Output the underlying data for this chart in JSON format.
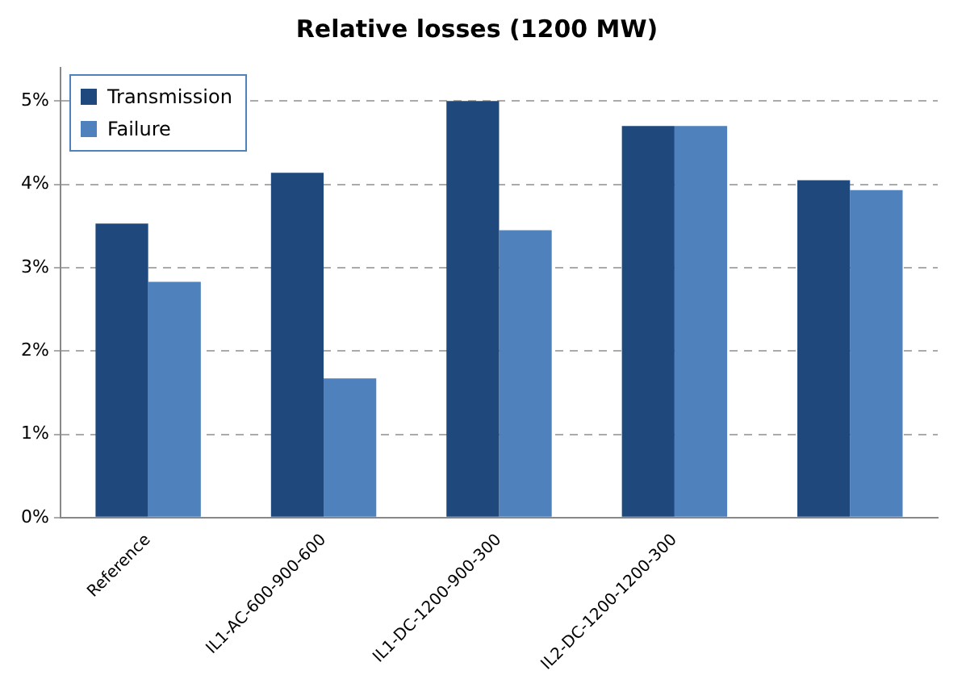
{
  "chart_data": {
    "type": "bar",
    "title": "Relative losses (1200 MW)",
    "categories": [
      "Reference",
      "IL1-AC-600-900-600",
      "IL1-DC-1200-900-300",
      "IL2-DC-1200-1200-300",
      null
    ],
    "series": [
      {
        "name": "Transmission",
        "color": "#1f497d",
        "values": [
          3.53,
          4.14,
          5.0,
          4.7,
          4.05
        ]
      },
      {
        "name": "Failure",
        "color": "#4f81bd",
        "values": [
          2.83,
          1.67,
          3.45,
          4.7,
          3.93
        ]
      }
    ],
    "ylim": [
      0,
      5.4
    ],
    "yticks": [
      {
        "value": 0,
        "label": "0%"
      },
      {
        "value": 1,
        "label": "1%"
      },
      {
        "value": 2,
        "label": "2%"
      },
      {
        "value": 3,
        "label": "3%"
      },
      {
        "value": 4,
        "label": "4%"
      },
      {
        "value": 5,
        "label": "5%"
      }
    ],
    "grid": "y",
    "legend": "top left"
  }
}
